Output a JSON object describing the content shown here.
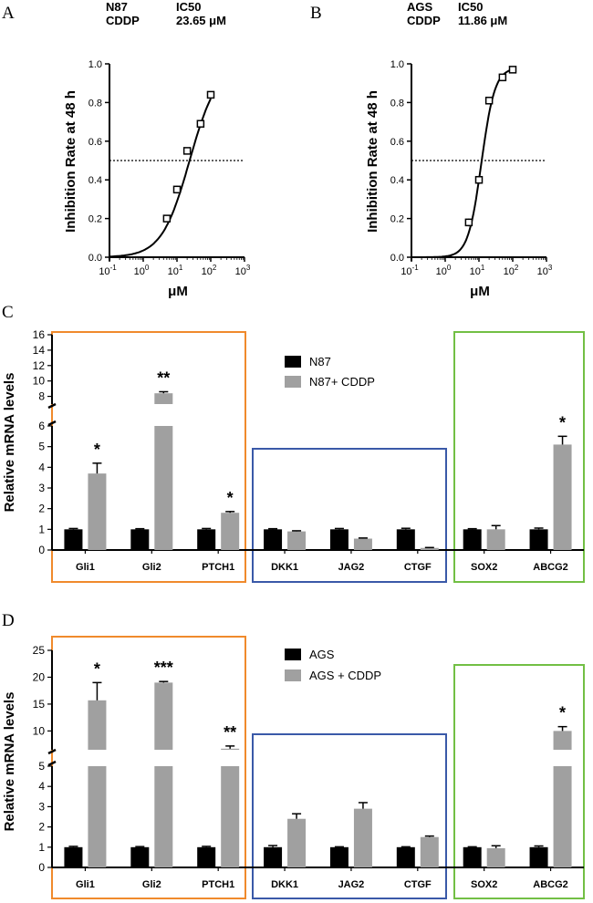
{
  "chart_data": [
    {
      "panel": "A",
      "type": "line",
      "cell_line": "N87",
      "drug": "CDDP",
      "ic50_label": "IC50",
      "ic50_value": "23.65 μM",
      "xlabel": "μM",
      "ylabel": "Inhibition Rate at 48 h",
      "xscale": "log",
      "xlim": [
        0.1,
        1000
      ],
      "ylim": [
        0,
        1.0
      ],
      "x_ticks": [
        {
          "base": "10",
          "exp": "-1",
          "value": 0.1
        },
        {
          "base": "10",
          "exp": "0",
          "value": 1
        },
        {
          "base": "10",
          "exp": "1",
          "value": 10
        },
        {
          "base": "10",
          "exp": "2",
          "value": 100
        },
        {
          "base": "10",
          "exp": "3",
          "value": 1000
        }
      ],
      "y_ticks": [
        "0.0",
        "0.2",
        "0.4",
        "0.6",
        "0.8",
        "1.0"
      ],
      "reference_line_y": 0.5,
      "points": [
        {
          "x": 5,
          "y": 0.2,
          "err": 0.01
        },
        {
          "x": 10,
          "y": 0.35,
          "err": 0.02
        },
        {
          "x": 20,
          "y": 0.55,
          "err": 0.01
        },
        {
          "x": 50,
          "y": 0.69,
          "err": 0.01
        },
        {
          "x": 100,
          "y": 0.84,
          "err": 0.01
        }
      ],
      "fit": {
        "ic50": 23.65,
        "hill": 1.05,
        "top": 1.0
      }
    },
    {
      "panel": "B",
      "type": "line",
      "cell_line": "AGS",
      "drug": "CDDP",
      "ic50_label": "IC50",
      "ic50_value": "11.86 μM",
      "xlabel": "μM",
      "ylabel": "Inhibition Rate at 48 h",
      "xscale": "log",
      "xlim": [
        0.1,
        1000
      ],
      "ylim": [
        0,
        1.0
      ],
      "x_ticks": [
        {
          "base": "10",
          "exp": "-1",
          "value": 0.1
        },
        {
          "base": "10",
          "exp": "0",
          "value": 1
        },
        {
          "base": "10",
          "exp": "1",
          "value": 10
        },
        {
          "base": "10",
          "exp": "2",
          "value": 100
        },
        {
          "base": "10",
          "exp": "3",
          "value": 1000
        }
      ],
      "y_ticks": [
        "0.0",
        "0.2",
        "0.4",
        "0.6",
        "0.8",
        "1.0"
      ],
      "reference_line_y": 0.5,
      "points": [
        {
          "x": 5,
          "y": 0.18,
          "err": 0.02
        },
        {
          "x": 10,
          "y": 0.4,
          "err": 0.01
        },
        {
          "x": 20,
          "y": 0.81,
          "err": 0.01
        },
        {
          "x": 50,
          "y": 0.93,
          "err": 0.01
        },
        {
          "x": 100,
          "y": 0.97,
          "err": 0.01
        }
      ],
      "fit": {
        "ic50": 11.86,
        "hill": 2.2,
        "top": 0.98
      }
    },
    {
      "panel": "C",
      "type": "bar",
      "ylabel": "Relative mRNA levels",
      "categories": [
        "Gli1",
        "Gli2",
        "PTCH1",
        "DKK1",
        "JAG2",
        "CTGF",
        "SOX2",
        "ABCG2"
      ],
      "axis_break": {
        "lower_max": 6,
        "upper_min": 7,
        "upper_max": 16
      },
      "y_ticks_lower": [
        "0",
        "1",
        "2",
        "3",
        "4",
        "5",
        "6"
      ],
      "y_ticks_upper": [
        "8",
        "10",
        "12",
        "14",
        "16"
      ],
      "series": [
        {
          "name": "N87",
          "color": "#000000",
          "values": [
            1.0,
            1.0,
            1.0,
            1.0,
            1.0,
            1.0,
            1.0,
            1.0
          ],
          "errors": [
            0.04,
            0.03,
            0.04,
            0.03,
            0.04,
            0.05,
            0.03,
            0.06
          ]
        },
        {
          "name": "N87+ CDDP",
          "color": "#a0a0a0",
          "values": [
            3.7,
            8.4,
            1.8,
            0.9,
            0.55,
            0.1,
            1.0,
            5.1
          ],
          "errors": [
            0.5,
            0.2,
            0.06,
            0.03,
            0.03,
            0.02,
            0.18,
            0.4
          ]
        }
      ],
      "significance": [
        "*",
        "**",
        "*",
        "",
        "",
        "",
        "",
        "*"
      ],
      "groups": [
        {
          "color": "#f08a2c",
          "from": 0,
          "to": 2
        },
        {
          "color": "#3a59a8",
          "from": 3,
          "to": 5
        },
        {
          "color": "#72bf44",
          "from": 6,
          "to": 7
        }
      ]
    },
    {
      "panel": "D",
      "type": "bar",
      "ylabel": "Relative mRNA levels",
      "categories": [
        "Gli1",
        "Gli2",
        "PTCH1",
        "DKK1",
        "JAG2",
        "CTGF",
        "SOX2",
        "ABCG2"
      ],
      "axis_break": {
        "lower_max": 5,
        "upper_min": 6.5,
        "upper_max": 25
      },
      "y_ticks_lower": [
        "0",
        "1",
        "2",
        "3",
        "4",
        "5"
      ],
      "y_ticks_upper": [
        "10",
        "15",
        "20",
        "25"
      ],
      "series": [
        {
          "name": "AGS",
          "color": "#000000",
          "values": [
            1.0,
            1.0,
            1.0,
            1.0,
            1.0,
            1.0,
            1.0,
            1.0
          ],
          "errors": [
            0.04,
            0.03,
            0.04,
            0.08,
            0.02,
            0.02,
            0.02,
            0.06
          ]
        },
        {
          "name": "AGS + CDDP",
          "color": "#a0a0a0",
          "values": [
            15.7,
            19.0,
            6.7,
            2.4,
            2.9,
            1.5,
            0.95,
            10.0
          ],
          "errors": [
            3.3,
            0.2,
            0.5,
            0.25,
            0.3,
            0.05,
            0.12,
            0.8
          ]
        }
      ],
      "significance": [
        "*",
        "***",
        "**",
        "",
        "",
        "",
        "",
        "*"
      ],
      "groups": [
        {
          "color": "#f08a2c",
          "from": 0,
          "to": 2
        },
        {
          "color": "#3a59a8",
          "from": 3,
          "to": 5
        },
        {
          "color": "#72bf44",
          "from": 6,
          "to": 7
        }
      ]
    }
  ]
}
